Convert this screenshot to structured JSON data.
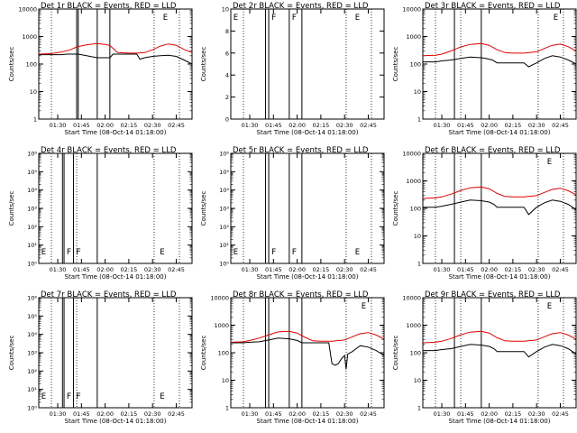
{
  "panels_meta": {
    "colors": {
      "events": "#000000",
      "lld": "#e00000",
      "axes": "#000000",
      "background": "#ffffff"
    }
  },
  "chart_data": [
    {
      "type": "line",
      "title": "Det 1r  BLACK = Events, RED = LLD",
      "xlabel": "Start Time (08-Oct-14 01:18:00)",
      "ylabel": "Counts/sec",
      "yscale": "log",
      "ylim": [
        1,
        10000
      ],
      "yticks": [
        "1",
        "10",
        "100",
        "1000",
        "10000"
      ],
      "xlim": [
        "01:18",
        "02:55"
      ],
      "xticks": [
        "01:30",
        "01:45",
        "02:00",
        "02:15",
        "02:30",
        "02:45"
      ],
      "dotted_lines": [
        "01:26",
        "01:42",
        "02:31",
        "02:47"
      ],
      "solid_lines": [
        "01:42",
        "01:43",
        "01:55",
        "02:03"
      ],
      "markers": [
        {
          "label": "E",
          "x": "02:36"
        }
      ],
      "series": [
        {
          "color": "#000000",
          "x": [
            "01:18",
            "01:26",
            "01:32",
            "01:36",
            "01:42",
            "01:43",
            "01:55",
            "01:58",
            "02:03",
            "02:05",
            "02:10",
            "02:15",
            "02:20",
            "02:22",
            "02:25",
            "02:30",
            "02:35",
            "02:40",
            "02:45",
            "02:50",
            "02:55"
          ],
          "values": [
            220,
            220,
            220,
            230,
            230,
            230,
            170,
            170,
            170,
            230,
            230,
            230,
            230,
            150,
            170,
            190,
            200,
            210,
            190,
            140,
            100
          ]
        },
        {
          "color": "#e00000",
          "x": [
            "01:18",
            "01:26",
            "01:32",
            "01:38",
            "01:42",
            "01:48",
            "01:55",
            "02:00",
            "02:03",
            "02:08",
            "02:15",
            "02:20",
            "02:25",
            "02:30",
            "02:35",
            "02:40",
            "02:45",
            "02:50",
            "02:55"
          ],
          "values": [
            230,
            240,
            270,
            330,
            420,
            500,
            560,
            520,
            470,
            260,
            250,
            250,
            260,
            330,
            450,
            540,
            480,
            340,
            260
          ]
        }
      ]
    },
    {
      "type": "line",
      "title": "Det 2r  BLACK = Events, RED = LLD",
      "xlabel": "Start Time (08-Oct-14 01:18:00)",
      "ylabel": "Counts/sec",
      "yscale": "linear",
      "ylim": [
        0,
        10
      ],
      "yticks": [
        "0",
        "2",
        "4",
        "6",
        "8",
        "10"
      ],
      "xlim": [
        "01:18",
        "02:55"
      ],
      "xticks": [
        "01:30",
        "01:45",
        "02:00",
        "02:15",
        "02:30",
        "02:45"
      ],
      "dotted_lines": [
        "01:26",
        "01:42",
        "02:31",
        "02:47"
      ],
      "solid_lines": [
        "01:40",
        "01:42",
        "01:55",
        "02:03"
      ],
      "markers": [
        {
          "label": "E",
          "x": "01:19"
        },
        {
          "label": "F",
          "x": "01:43"
        },
        {
          "label": "F",
          "x": "01:56"
        },
        {
          "label": "E",
          "x": "02:36"
        }
      ],
      "series": []
    },
    {
      "type": "line",
      "title": "Det 3r  BLACK = Events, RED = LLD",
      "xlabel": "Start Time (08-Oct-14 01:18:00)",
      "ylabel": "Counts/sec",
      "yscale": "log",
      "ylim": [
        1,
        10000
      ],
      "yticks": [
        "1",
        "10",
        "100",
        "1000",
        "10000"
      ],
      "xlim": [
        "01:18",
        "02:55"
      ],
      "xticks": [
        "01:30",
        "01:45",
        "02:00",
        "02:15",
        "02:30",
        "02:45"
      ],
      "dotted_lines": [
        "01:26",
        "01:42",
        "02:31",
        "02:47"
      ],
      "solid_lines": [
        "01:38",
        "01:55"
      ],
      "markers": [
        {
          "label": "E",
          "x": "02:40"
        }
      ],
      "series": [
        {
          "color": "#000000",
          "x": [
            "01:18",
            "01:26",
            "01:30",
            "01:36",
            "01:42",
            "01:48",
            "01:55",
            "01:58",
            "02:02",
            "02:05",
            "02:15",
            "02:22",
            "02:25",
            "02:30",
            "02:35",
            "02:40",
            "02:45",
            "02:50",
            "02:55"
          ],
          "values": [
            120,
            120,
            130,
            140,
            160,
            180,
            170,
            160,
            140,
            110,
            110,
            110,
            80,
            110,
            160,
            200,
            180,
            140,
            100
          ]
        },
        {
          "color": "#e00000",
          "x": [
            "01:18",
            "01:26",
            "01:30",
            "01:36",
            "01:42",
            "01:48",
            "01:55",
            "02:00",
            "02:05",
            "02:10",
            "02:15",
            "02:22",
            "02:30",
            "02:35",
            "02:40",
            "02:45",
            "02:50",
            "02:55"
          ],
          "values": [
            200,
            210,
            230,
            300,
            420,
            520,
            560,
            480,
            330,
            260,
            250,
            250,
            280,
            370,
            480,
            530,
            430,
            300
          ]
        }
      ]
    },
    {
      "type": "line",
      "title": "Det 4r  BLACK = Events, RED = LLD",
      "xlabel": "Start Time (08-Oct-14 01:18:00)",
      "ylabel": "Counts/sec",
      "yscale": "log",
      "ylim": [
        1,
        1000000
      ],
      "yticks": [
        "10⁰",
        "10¹",
        "10²",
        "10³",
        "10⁴",
        "10⁵",
        "10⁶"
      ],
      "xlim": [
        "01:18",
        "02:55"
      ],
      "xticks": [
        "01:30",
        "01:45",
        "02:00",
        "02:15",
        "02:30",
        "02:45"
      ],
      "dotted_lines": [
        "01:26",
        "01:42",
        "02:31",
        "02:47"
      ],
      "solid_lines": [
        "01:33",
        "01:34",
        "01:40",
        "01:55"
      ],
      "markers": [
        {
          "label": "E",
          "x": "01:19"
        },
        {
          "label": "F",
          "x": "01:35"
        },
        {
          "label": "F",
          "x": "01:41"
        },
        {
          "label": "E",
          "x": "02:34"
        }
      ],
      "series": []
    },
    {
      "type": "line",
      "title": "Det 5r  BLACK = Events, RED = LLD",
      "xlabel": "Start Time (08-Oct-14 01:18:00)",
      "ylabel": "Counts/sec",
      "yscale": "log",
      "ylim": [
        1,
        1000000
      ],
      "yticks": [
        "10⁰",
        "10¹",
        "10²",
        "10³",
        "10⁴",
        "10⁵",
        "10⁶"
      ],
      "xlim": [
        "01:18",
        "02:55"
      ],
      "xticks": [
        "01:30",
        "01:45",
        "02:00",
        "02:15",
        "02:30",
        "02:45"
      ],
      "dotted_lines": [
        "01:26",
        "01:42",
        "02:31",
        "02:47"
      ],
      "solid_lines": [
        "01:40",
        "01:42",
        "01:55",
        "02:03"
      ],
      "markers": [
        {
          "label": "E",
          "x": "01:19"
        },
        {
          "label": "F",
          "x": "01:43"
        },
        {
          "label": "F",
          "x": "01:56"
        },
        {
          "label": "E",
          "x": "02:36"
        }
      ],
      "series": []
    },
    {
      "type": "line",
      "title": "Det 6r  BLACK = Events, RED = LLD",
      "xlabel": "Start Time (08-Oct-14 01:18:00)",
      "ylabel": "Counts/sec",
      "yscale": "log",
      "ylim": [
        1,
        10000
      ],
      "yticks": [
        "1",
        "10",
        "100",
        "1000",
        "10000"
      ],
      "xlim": [
        "01:18",
        "02:55"
      ],
      "xticks": [
        "01:30",
        "01:45",
        "02:00",
        "02:15",
        "02:30",
        "02:45"
      ],
      "dotted_lines": [
        "01:26",
        "01:42",
        "02:31",
        "02:47"
      ],
      "solid_lines": [
        "01:38",
        "01:55"
      ],
      "markers": [
        {
          "label": "E",
          "x": "02:36"
        }
      ],
      "series": [
        {
          "color": "#000000",
          "x": [
            "01:18",
            "01:26",
            "01:30",
            "01:36",
            "01:42",
            "01:48",
            "01:55",
            "02:00",
            "02:03",
            "02:05",
            "02:15",
            "02:22",
            "02:25",
            "02:30",
            "02:35",
            "02:40",
            "02:45",
            "02:50",
            "02:55"
          ],
          "values": [
            110,
            110,
            120,
            140,
            170,
            200,
            190,
            170,
            140,
            110,
            110,
            110,
            60,
            110,
            160,
            200,
            180,
            140,
            90
          ]
        },
        {
          "color": "#e00000",
          "x": [
            "01:18",
            "01:26",
            "01:30",
            "01:36",
            "01:42",
            "01:48",
            "01:55",
            "02:00",
            "02:05",
            "02:10",
            "02:15",
            "02:22",
            "02:30",
            "02:35",
            "02:40",
            "02:45",
            "02:50",
            "02:55"
          ],
          "values": [
            230,
            240,
            260,
            330,
            450,
            560,
            600,
            520,
            350,
            270,
            260,
            260,
            290,
            380,
            490,
            540,
            440,
            310
          ]
        }
      ]
    },
    {
      "type": "line",
      "title": "Det 7r  BLACK = Events, RED = LLD",
      "xlabel": "Start Time (08-Oct-14 01:18:00)",
      "ylabel": "Counts/sec",
      "yscale": "log",
      "ylim": [
        1,
        1000000
      ],
      "yticks": [
        "10⁰",
        "10¹",
        "10²",
        "10³",
        "10⁴",
        "10⁵",
        "10⁶"
      ],
      "xlim": [
        "01:18",
        "02:55"
      ],
      "xticks": [
        "01:30",
        "01:45",
        "02:00",
        "02:15",
        "02:30",
        "02:45"
      ],
      "dotted_lines": [
        "01:26",
        "01:42",
        "02:31",
        "02:47"
      ],
      "solid_lines": [
        "01:33",
        "01:34",
        "01:40",
        "01:55"
      ],
      "markers": [
        {
          "label": "E",
          "x": "01:19"
        },
        {
          "label": "F",
          "x": "01:35"
        },
        {
          "label": "F",
          "x": "01:41"
        },
        {
          "label": "E",
          "x": "02:34"
        }
      ],
      "series": []
    },
    {
      "type": "line",
      "title": "Det 8r  BLACK = Events, RED = LLD",
      "xlabel": "Start Time (08-Oct-14 01:18:00)",
      "ylabel": "Counts/sec",
      "yscale": "log",
      "ylim": [
        1,
        10000
      ],
      "yticks": [
        "1",
        "10",
        "100",
        "1000",
        "10000"
      ],
      "xlim": [
        "01:18",
        "02:55"
      ],
      "xticks": [
        "01:30",
        "01:45",
        "02:00",
        "02:15",
        "02:30",
        "02:45"
      ],
      "dotted_lines": [
        "01:26",
        "01:42",
        "02:31",
        "02:47"
      ],
      "solid_lines": [
        "01:40",
        "01:42",
        "01:55",
        "02:03"
      ],
      "markers": [
        {
          "label": "E",
          "x": "02:40"
        }
      ],
      "series": [
        {
          "color": "#000000",
          "x": [
            "01:18",
            "01:26",
            "01:30",
            "01:36",
            "01:42",
            "01:48",
            "01:55",
            "02:00",
            "02:03",
            "02:05",
            "02:15",
            "02:20",
            "02:22",
            "02:24",
            "02:26",
            "02:28",
            "02:30",
            "02:31",
            "02:32",
            "02:35",
            "02:38",
            "02:40",
            "02:45",
            "02:50",
            "02:55"
          ],
          "values": [
            230,
            230,
            240,
            250,
            290,
            340,
            320,
            280,
            230,
            230,
            230,
            230,
            40,
            35,
            40,
            60,
            80,
            25,
            90,
            110,
            150,
            180,
            160,
            120,
            80
          ]
        },
        {
          "color": "#e00000",
          "x": [
            "01:18",
            "01:26",
            "01:30",
            "01:36",
            "01:42",
            "01:48",
            "01:55",
            "02:00",
            "02:05",
            "02:10",
            "02:15",
            "02:22",
            "02:30",
            "02:35",
            "02:40",
            "02:45",
            "02:50",
            "02:55"
          ],
          "values": [
            240,
            250,
            280,
            340,
            450,
            570,
            600,
            520,
            360,
            270,
            260,
            260,
            290,
            380,
            490,
            540,
            440,
            310
          ]
        }
      ]
    },
    {
      "type": "line",
      "title": "Det 9r  BLACK = Events, RED = LLD",
      "xlabel": "Start Time (08-Oct-14 01:18:00)",
      "ylabel": "Counts/sec",
      "yscale": "log",
      "ylim": [
        1,
        10000
      ],
      "yticks": [
        "1",
        "10",
        "100",
        "1000",
        "10000"
      ],
      "xlim": [
        "01:18",
        "02:55"
      ],
      "xticks": [
        "01:30",
        "01:45",
        "02:00",
        "02:15",
        "02:30",
        "02:45"
      ],
      "dotted_lines": [
        "01:26",
        "01:42",
        "02:31",
        "02:47"
      ],
      "solid_lines": [
        "01:38",
        "01:55"
      ],
      "markers": [
        {
          "label": "E",
          "x": "02:36"
        }
      ],
      "series": [
        {
          "color": "#000000",
          "x": [
            "01:18",
            "01:26",
            "01:30",
            "01:36",
            "01:42",
            "01:48",
            "01:55",
            "02:00",
            "02:03",
            "02:05",
            "02:15",
            "02:22",
            "02:25",
            "02:30",
            "02:35",
            "02:40",
            "02:45",
            "02:50",
            "02:55"
          ],
          "values": [
            120,
            120,
            130,
            140,
            170,
            200,
            190,
            170,
            140,
            110,
            110,
            110,
            70,
            110,
            160,
            200,
            180,
            140,
            90
          ]
        },
        {
          "color": "#e00000",
          "x": [
            "01:18",
            "01:26",
            "01:30",
            "01:36",
            "01:42",
            "01:48",
            "01:55",
            "02:00",
            "02:05",
            "02:10",
            "02:15",
            "02:22",
            "02:30",
            "02:35",
            "02:40",
            "02:45",
            "02:50",
            "02:55"
          ],
          "values": [
            230,
            240,
            260,
            330,
            450,
            560,
            600,
            520,
            350,
            270,
            260,
            260,
            290,
            380,
            490,
            540,
            440,
            310
          ]
        }
      ]
    }
  ]
}
